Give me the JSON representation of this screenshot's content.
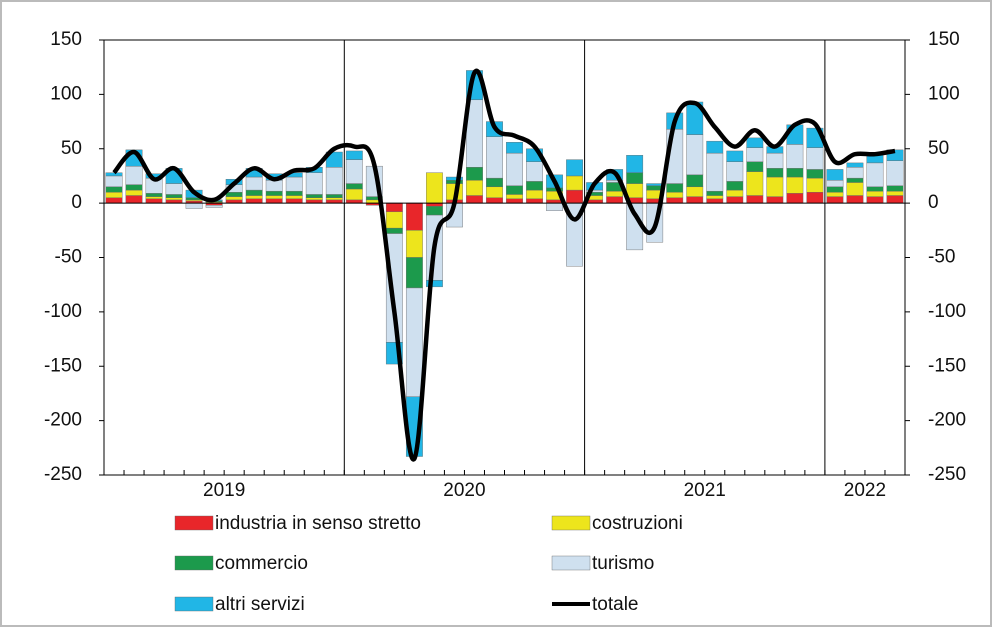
{
  "chart_data": {
    "type": "stacked-bar-line",
    "year_groups": [
      {
        "label": "2019",
        "months": 12
      },
      {
        "label": "2020",
        "months": 12
      },
      {
        "label": "2021",
        "months": 12
      },
      {
        "label": "2022",
        "months": 4
      }
    ],
    "ylim": [
      -250,
      150
    ],
    "yticks": [
      -250,
      -200,
      -150,
      -100,
      -50,
      0,
      50,
      100,
      150
    ],
    "y2lim": [
      -250,
      150
    ],
    "y2ticks": [
      -250,
      -200,
      -150,
      -100,
      -50,
      0,
      50,
      100,
      150
    ],
    "series": [
      {
        "name": "industria in senso stretto",
        "color": "#e8262a",
        "values": [
          5,
          7,
          4,
          3,
          2,
          -2,
          3,
          4,
          4,
          4,
          3,
          3,
          3,
          -2,
          -8,
          -25,
          -3,
          3,
          7,
          5,
          4,
          4,
          3,
          12,
          3,
          6,
          5,
          4,
          5,
          6,
          4,
          6,
          7,
          6,
          9,
          10,
          6,
          7,
          6,
          7
        ]
      },
      {
        "name": "costruzioni",
        "color": "#ede51c",
        "values": [
          5,
          5,
          2,
          2,
          1,
          1,
          3,
          3,
          3,
          3,
          2,
          2,
          10,
          3,
          -15,
          -25,
          28,
          15,
          14,
          10,
          4,
          8,
          8,
          13,
          4,
          5,
          13,
          8,
          5,
          9,
          3,
          6,
          22,
          18,
          15,
          13,
          4,
          12,
          5,
          4
        ]
      },
      {
        "name": "commercio",
        "color": "#1c9a4c",
        "values": [
          5,
          5,
          3,
          3,
          2,
          1,
          4,
          5,
          4,
          4,
          3,
          3,
          5,
          3,
          -5,
          -28,
          -8,
          3,
          12,
          8,
          8,
          8,
          3,
          0,
          3,
          8,
          10,
          4,
          8,
          11,
          4,
          8,
          9,
          8,
          8,
          8,
          5,
          4,
          4,
          5
        ]
      },
      {
        "name": "turismo",
        "color": "#cfe0ef",
        "values": [
          10,
          17,
          14,
          10,
          -5,
          -2,
          7,
          12,
          10,
          13,
          20,
          25,
          22,
          28,
          -100,
          -100,
          -60,
          -22,
          62,
          38,
          30,
          18,
          -7,
          -58,
          2,
          2,
          -43,
          -36,
          50,
          37,
          35,
          18,
          13,
          14,
          22,
          20,
          6,
          10,
          22,
          23
        ]
      },
      {
        "name": "altri servizi",
        "color": "#21b6e6",
        "values": [
          3,
          15,
          4,
          14,
          7,
          1,
          5,
          8,
          6,
          4,
          5,
          14,
          8,
          0,
          -20,
          -55,
          -6,
          3,
          27,
          14,
          10,
          12,
          12,
          15,
          7,
          10,
          16,
          2,
          15,
          30,
          11,
          10,
          9,
          6,
          18,
          18,
          10,
          4,
          7,
          10
        ]
      },
      {
        "name": "totale",
        "color": "#000000",
        "type": "line",
        "values": [
          28,
          47,
          22,
          32,
          10,
          3,
          18,
          32,
          22,
          30,
          32,
          50,
          52,
          35,
          -100,
          -235,
          -40,
          0,
          120,
          70,
          62,
          52,
          20,
          -15,
          18,
          28,
          -10,
          -22,
          75,
          92,
          70,
          52,
          67,
          52,
          72,
          73,
          38,
          45,
          45,
          48
        ]
      }
    ]
  }
}
